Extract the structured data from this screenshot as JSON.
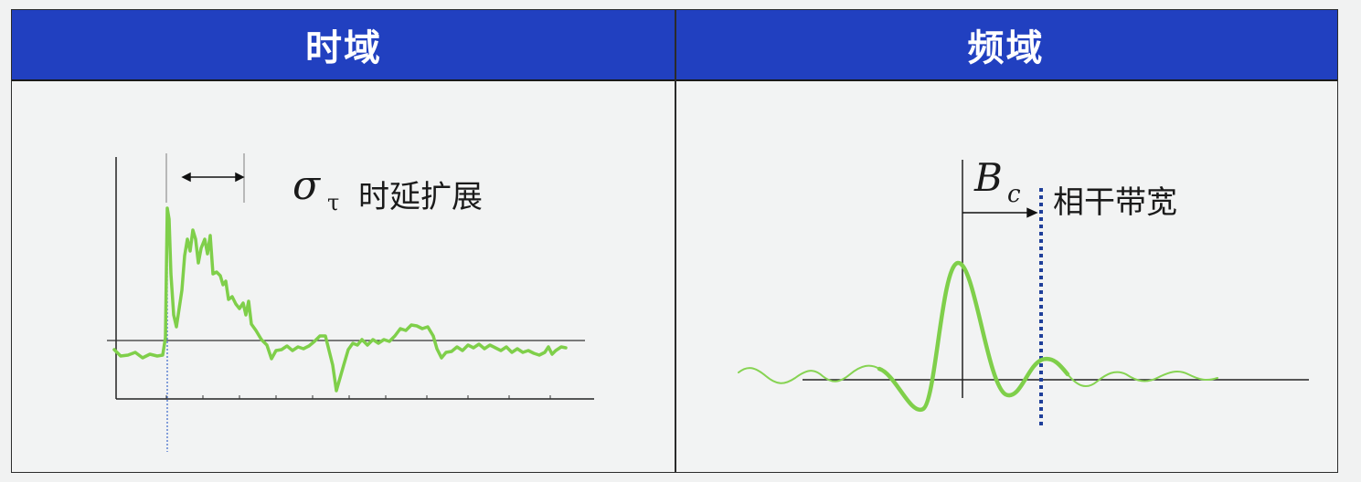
{
  "headers": {
    "time_domain": "时域",
    "frequency_domain": "频域"
  },
  "time_panel": {
    "symbol": "σ",
    "symbol_subscript": "τ",
    "label": "时延扩展"
  },
  "frequency_panel": {
    "symbol": "B",
    "symbol_subscript": "c",
    "label": "相干带宽"
  },
  "colors": {
    "header_background": "#2140c0",
    "curve": "#7fcf4a",
    "dotted_marker": "#1f3f9a"
  }
}
